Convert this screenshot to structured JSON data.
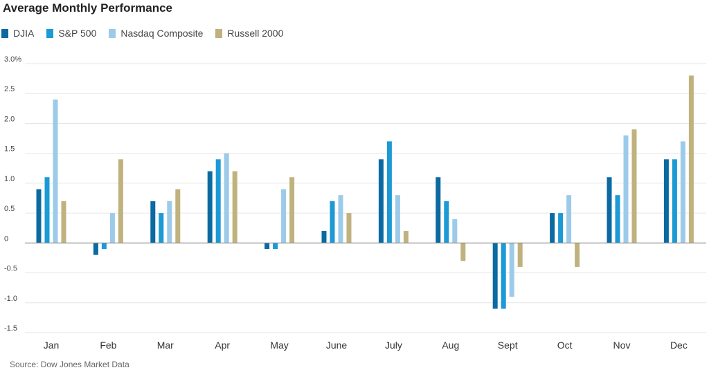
{
  "chart_data": {
    "type": "bar",
    "title": "Average Monthly Performance",
    "categories": [
      "Jan",
      "Feb",
      "Mar",
      "Apr",
      "May",
      "June",
      "July",
      "Aug",
      "Sept",
      "Oct",
      "Nov",
      "Dec"
    ],
    "series": [
      {
        "name": "DJIA",
        "color": "#0a6aa1",
        "values": [
          0.9,
          -0.2,
          0.7,
          1.2,
          -0.1,
          0.2,
          1.4,
          1.1,
          -1.1,
          0.5,
          1.1,
          1.4
        ]
      },
      {
        "name": "S&P 500",
        "color": "#1b9ad6",
        "values": [
          1.1,
          -0.1,
          0.5,
          1.4,
          -0.1,
          0.7,
          1.7,
          0.7,
          -1.1,
          0.5,
          0.8,
          1.4
        ]
      },
      {
        "name": "Nasdaq Composite",
        "color": "#9ccbea",
        "values": [
          2.4,
          0.5,
          0.7,
          1.5,
          0.9,
          0.8,
          0.8,
          0.4,
          -0.9,
          0.8,
          1.8,
          1.7
        ]
      },
      {
        "name": "Russell 2000",
        "color": "#bfb27e",
        "values": [
          0.7,
          1.4,
          0.9,
          1.2,
          1.1,
          0.5,
          0.2,
          -0.3,
          -0.4,
          -0.4,
          1.9,
          2.8
        ]
      }
    ],
    "ylim": [
      -1.5,
      3.0
    ],
    "yticks": [
      3.0,
      2.5,
      2.0,
      1.5,
      1.0,
      0.5,
      0,
      -0.5,
      -1.0,
      -1.5
    ],
    "ytick_labels": [
      "3.0%",
      "2.5",
      "2.0",
      "1.5",
      "1.0",
      "0.5",
      "0",
      "-0.5",
      "-1.0",
      "-1.5"
    ],
    "grid": true,
    "legend_position": "top-left",
    "xlabel": "",
    "ylabel": "",
    "source": "Source: Dow Jones Market Data"
  }
}
